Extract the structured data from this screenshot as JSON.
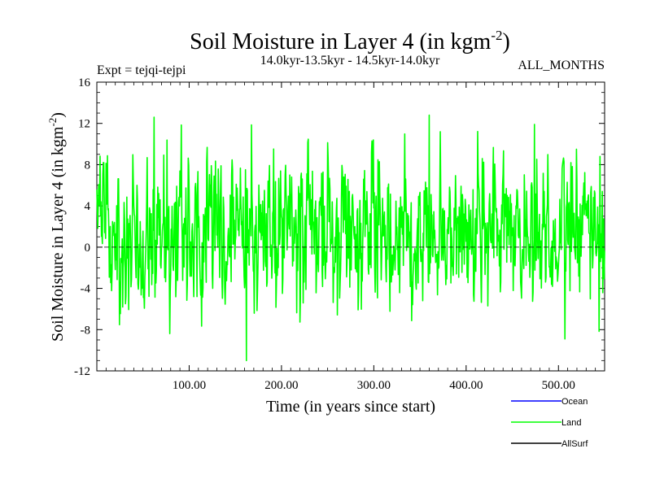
{
  "chart_data": {
    "type": "line",
    "title_main": "Soil Moisture in Layer 4 (in kgm",
    "title_sup": "-2",
    "title_close": ")",
    "subtitle_left": "Expt = tejqi-tejpi",
    "subtitle_center": "14.0kyr-13.5kyr - 14.5kyr-14.0kyr",
    "subtitle_right": "ALL_MONTHS",
    "xlabel": "Time (in years since start)",
    "ylabel_main": "Soil Moisture in Layer 4 (in kgm",
    "ylabel_sup": "-2",
    "ylabel_close": ")",
    "xlim": [
      0,
      550
    ],
    "ylim": [
      -12,
      16
    ],
    "x_ticks": [
      100,
      200,
      300,
      400,
      500
    ],
    "x_tick_labels": [
      "100.00",
      "200.00",
      "300.00",
      "400.00",
      "500.00"
    ],
    "y_ticks": [
      -12,
      -8,
      -4,
      0,
      4,
      8,
      12,
      16
    ],
    "y_tick_labels": [
      "-12",
      "-8",
      "-4",
      "0",
      "4",
      "8",
      "12",
      "16"
    ],
    "zero_line": true,
    "legend": [
      {
        "name": "Ocean",
        "color": "#0000ff"
      },
      {
        "name": "Land",
        "color": "#00ff00"
      },
      {
        "name": "AllSurf",
        "color": "#000000"
      }
    ],
    "series": [
      {
        "name": "Land",
        "color": "#00ff00",
        "x_start": 0,
        "x_step": 0.5,
        "n_points": 1101,
        "mean": 1.6,
        "std": 3.6,
        "min": -11.0,
        "max": 12.8,
        "notable_points": [
          {
            "x": 62,
            "y": 12.6
          },
          {
            "x": 162,
            "y": -11.0
          },
          {
            "x": 360,
            "y": 12.8
          },
          {
            "x": 474,
            "y": 11.9
          },
          {
            "x": 507,
            "y": -8.9
          },
          {
            "x": 545,
            "y": 8.8
          }
        ]
      }
    ]
  }
}
